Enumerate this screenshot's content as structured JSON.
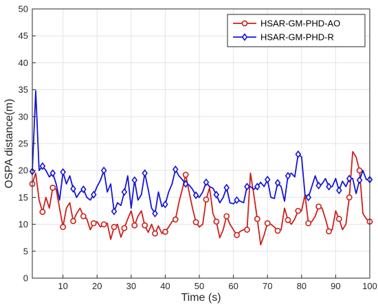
{
  "chart_data": {
    "type": "line",
    "xlabel": "Time (s)",
    "ylabel": "OSPA distance(m)",
    "xlim": [
      1,
      100
    ],
    "ylim": [
      0,
      50
    ],
    "xticks": [
      10,
      20,
      30,
      40,
      50,
      60,
      70,
      80,
      90,
      100
    ],
    "yticks": [
      0,
      5,
      10,
      15,
      20,
      25,
      30,
      35,
      40,
      45,
      50
    ],
    "grid": true,
    "legend_position": "top-right",
    "series": [
      {
        "name": "HSAR-GM-PHD-AO",
        "color": "#cc1f1a",
        "marker": "circle",
        "marker_every": 3,
        "x": [
          1,
          2,
          3,
          4,
          5,
          6,
          7,
          8,
          9,
          10,
          11,
          12,
          13,
          14,
          15,
          16,
          17,
          18,
          19,
          20,
          21,
          22,
          23,
          24,
          25,
          26,
          27,
          28,
          29,
          30,
          31,
          32,
          33,
          34,
          35,
          36,
          37,
          38,
          39,
          40,
          41,
          42,
          43,
          44,
          45,
          46,
          47,
          48,
          49,
          50,
          51,
          52,
          53,
          54,
          55,
          56,
          57,
          58,
          59,
          60,
          61,
          62,
          63,
          64,
          65,
          66,
          67,
          68,
          69,
          70,
          71,
          72,
          73,
          74,
          75,
          76,
          77,
          78,
          79,
          80,
          81,
          82,
          83,
          84,
          85,
          86,
          87,
          88,
          89,
          90,
          91,
          92,
          93,
          94,
          95,
          96,
          97,
          98,
          99,
          100
        ],
        "values": [
          17.5,
          19.5,
          14.5,
          12.3,
          15.0,
          13.0,
          16.8,
          16.5,
          13.0,
          9.5,
          13.0,
          14.0,
          10.6,
          12.0,
          13.0,
          11.5,
          11.0,
          9.0,
          10.2,
          10.5,
          9.5,
          10.0,
          10.2,
          7.2,
          9.5,
          10.0,
          7.6,
          9.3,
          11.0,
          12.5,
          9.8,
          11.5,
          12.5,
          9.8,
          8.5,
          10.0,
          8.3,
          9.7,
          8.3,
          8.6,
          9.5,
          10.5,
          10.9,
          14.0,
          16.5,
          19.2,
          16.0,
          13.0,
          10.4,
          9.5,
          10.0,
          14.6,
          16.8,
          12.0,
          10.5,
          7.5,
          9.0,
          11.5,
          10.0,
          9.0,
          8.0,
          8.7,
          9.0,
          9.0,
          19.5,
          15.5,
          11.0,
          6.2,
          8.0,
          10.2,
          10.0,
          9.5,
          8.8,
          9.0,
          13.0,
          10.8,
          10.0,
          11.0,
          12.5,
          12.5,
          15.5,
          10.2,
          10.5,
          11.5,
          13.3,
          13.0,
          11.0,
          8.7,
          9.0,
          12.5,
          11.0,
          9.0,
          10.0,
          15.0,
          23.5,
          22.5,
          20.0,
          12.0,
          11.0,
          10.5
        ]
      },
      {
        "name": "HSAR-GM-PHD-R",
        "color": "#1414d4",
        "marker": "diamond",
        "marker_every": 3,
        "x": [
          1,
          2,
          3,
          4,
          5,
          6,
          7,
          8,
          9,
          10,
          11,
          12,
          13,
          14,
          15,
          16,
          17,
          18,
          19,
          20,
          21,
          22,
          23,
          24,
          25,
          26,
          27,
          28,
          29,
          30,
          31,
          32,
          33,
          34,
          35,
          36,
          37,
          38,
          39,
          40,
          41,
          42,
          43,
          44,
          45,
          46,
          47,
          48,
          49,
          50,
          51,
          52,
          53,
          54,
          55,
          56,
          57,
          58,
          59,
          60,
          61,
          62,
          63,
          64,
          65,
          66,
          67,
          68,
          69,
          70,
          71,
          72,
          73,
          74,
          75,
          76,
          77,
          78,
          79,
          80,
          81,
          82,
          83,
          84,
          85,
          86,
          87,
          88,
          89,
          90,
          91,
          92,
          93,
          94,
          95,
          96,
          97,
          98,
          99,
          100
        ],
        "values": [
          19.8,
          34.8,
          20.0,
          20.8,
          20.0,
          18.8,
          19.5,
          17.5,
          14.5,
          19.7,
          17.5,
          19.0,
          16.6,
          15.0,
          16.0,
          16.5,
          15.0,
          14.5,
          15.5,
          17.0,
          18.2,
          20.0,
          16.0,
          17.5,
          12.4,
          14.0,
          13.5,
          16.0,
          19.0,
          13.0,
          18.2,
          14.5,
          15.5,
          19.5,
          16.5,
          13.0,
          12.0,
          16.0,
          13.3,
          13.7,
          16.0,
          17.5,
          20.2,
          19.0,
          18.3,
          17.5,
          17.3,
          16.5,
          15.4,
          15.0,
          16.0,
          17.8,
          17.0,
          16.7,
          15.5,
          14.0,
          15.0,
          16.8,
          14.0,
          13.8,
          14.5,
          14.3,
          14.0,
          17.0,
          17.0,
          16.5,
          17.0,
          17.8,
          17.0,
          18.3,
          15.0,
          14.8,
          17.7,
          17.0,
          14.3,
          19.0,
          19.5,
          18.8,
          23.0,
          22.5,
          15.5,
          15.0,
          17.0,
          19.0,
          17.2,
          17.5,
          18.5,
          17.0,
          17.0,
          18.5,
          16.3,
          18.0,
          17.0,
          18.5,
          18.5,
          15.7,
          18.2,
          20.0,
          18.3,
          18.3
        ]
      }
    ]
  }
}
